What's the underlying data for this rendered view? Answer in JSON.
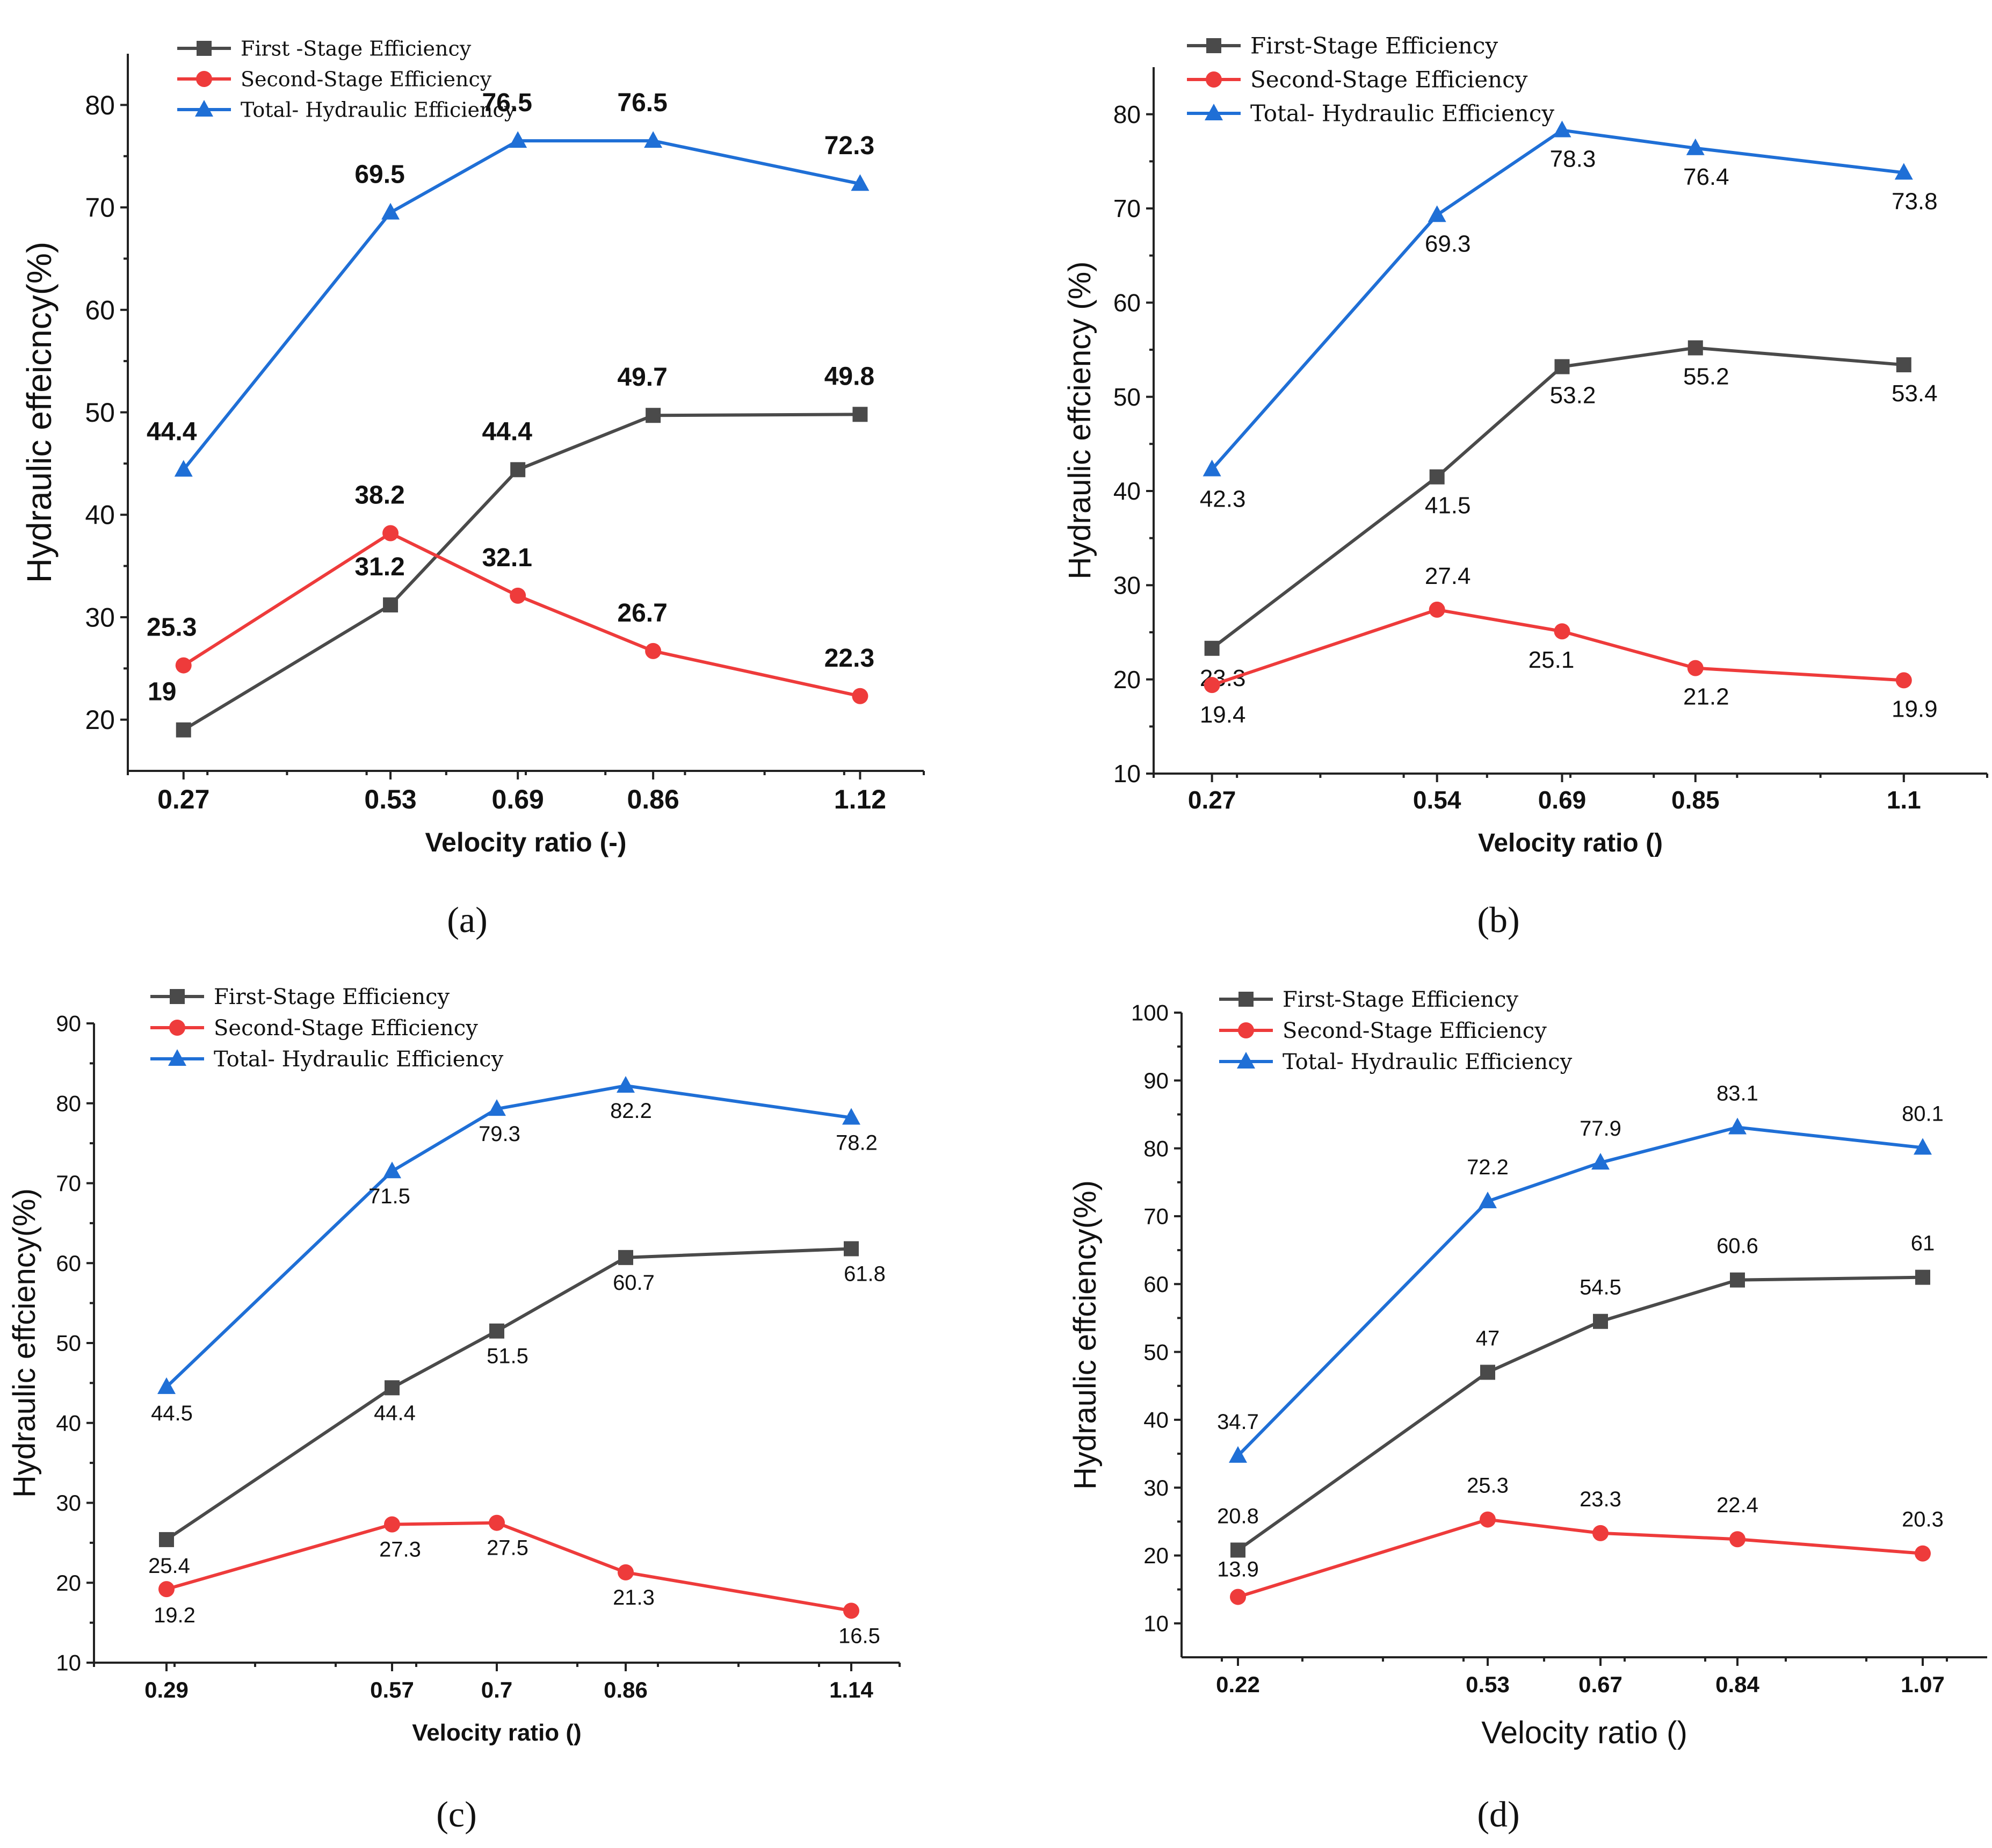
{
  "colors": {
    "first": "#4a4a4a",
    "second": "#ee3b3b",
    "total": "#1f6fd6"
  },
  "chart_data": [
    {
      "id": "a",
      "type": "line",
      "caption": "(a)",
      "xlabel": "Velocity ratio (-)",
      "ylabel": "Hydraulic effeicncy(%)",
      "x": [
        0.27,
        0.53,
        0.69,
        0.86,
        1.12
      ],
      "xticks": [
        "0.27",
        "0.53",
        "0.69",
        "0.86",
        "1.12"
      ],
      "xlim": [
        0.2,
        1.2
      ],
      "ylim": [
        15,
        85
      ],
      "yticks": [
        20,
        30,
        40,
        50,
        60,
        70,
        80
      ],
      "legend": "top-left",
      "series": [
        {
          "key": "first",
          "name": "First -Stage Efficiency",
          "marker": "square",
          "values": [
            19,
            31.2,
            44.4,
            49.7,
            49.8
          ],
          "labels": [
            "19",
            "31.2",
            "44.4",
            "49.7",
            "49.8"
          ]
        },
        {
          "key": "second",
          "name": "Second-Stage Efficiency",
          "marker": "circle",
          "values": [
            25.3,
            38.2,
            32.1,
            26.7,
            22.3
          ],
          "labels": [
            "25.3",
            "38.2",
            "32.1",
            "26.7",
            "22.3"
          ]
        },
        {
          "key": "total",
          "name": "Total- Hydraulic Efficiency",
          "marker": "triangle",
          "values": [
            44.4,
            69.5,
            76.5,
            76.5,
            72.3
          ],
          "labels": [
            "44.4",
            "69.5",
            "76.5",
            "76.5",
            "72.3"
          ]
        }
      ]
    },
    {
      "id": "b",
      "type": "line",
      "caption": "(b)",
      "xlabel": "Velocity ratio ()",
      "ylabel": "Hydraulic effciency (%)",
      "x": [
        0.27,
        0.54,
        0.69,
        0.85,
        1.1
      ],
      "xticks": [
        "0.27",
        "0.54",
        "0.69",
        "0.85",
        "1.1"
      ],
      "xlim": [
        0.2,
        1.2
      ],
      "ylim": [
        10,
        85
      ],
      "yticks": [
        10,
        20,
        30,
        40,
        50,
        60,
        70,
        80
      ],
      "legend": "top-left",
      "series": [
        {
          "key": "first",
          "name": "First-Stage Efficiency",
          "marker": "square",
          "values": [
            23.3,
            41.5,
            53.2,
            55.2,
            53.4
          ],
          "labels": [
            "23.3",
            "41.5",
            "53.2",
            "55.2",
            "53.4"
          ]
        },
        {
          "key": "second",
          "name": "Second-Stage Efficiency",
          "marker": "circle",
          "values": [
            19.4,
            27.4,
            25.1,
            21.2,
            19.9
          ],
          "labels": [
            "19.4",
            "27.4",
            "25.1",
            "21.2",
            "19.9"
          ]
        },
        {
          "key": "total",
          "name": "Total- Hydraulic Efficiency",
          "marker": "triangle",
          "values": [
            42.3,
            69.3,
            78.3,
            76.4,
            73.8
          ],
          "labels": [
            "42.3",
            "69.3",
            "78.3",
            "76.4",
            "73.8"
          ]
        }
      ]
    },
    {
      "id": "c",
      "type": "line",
      "caption": "(c)",
      "xlabel": "Velocity ratio ()",
      "ylabel": "Hydraulic effciency(%)",
      "x": [
        0.29,
        0.57,
        0.7,
        0.86,
        1.14
      ],
      "xticks": [
        "0.29",
        "0.57",
        "0.7",
        "0.86",
        "1.14"
      ],
      "xlim": [
        0.2,
        1.2
      ],
      "ylim": [
        10,
        90
      ],
      "yticks": [
        10,
        20,
        30,
        40,
        50,
        60,
        70,
        80,
        90
      ],
      "legend": "top-left",
      "series": [
        {
          "key": "first",
          "name": "First-Stage Efficiency",
          "marker": "square",
          "values": [
            25.4,
            44.4,
            51.5,
            60.7,
            61.8
          ],
          "labels": [
            "25.4",
            "44.4",
            "51.5",
            "60.7",
            "61.8"
          ]
        },
        {
          "key": "second",
          "name": "Second-Stage Efficiency",
          "marker": "circle",
          "values": [
            19.2,
            27.3,
            27.5,
            21.3,
            16.5
          ],
          "labels": [
            "19.2",
            "27.3",
            "27.5",
            "21.3",
            "16.5"
          ]
        },
        {
          "key": "total",
          "name": "Total- Hydraulic Efficiency",
          "marker": "triangle",
          "values": [
            44.5,
            71.5,
            79.3,
            82.2,
            78.2
          ],
          "labels": [
            "44.5",
            "71.5",
            "79.3",
            "82.2",
            "78.2"
          ]
        }
      ]
    },
    {
      "id": "d",
      "type": "line",
      "caption": "(d)",
      "xlabel": "Velocity ratio ()",
      "ylabel": "Hydraulic effciency(%)",
      "x": [
        0.22,
        0.53,
        0.67,
        0.84,
        1.07
      ],
      "xticks": [
        "0.22",
        "0.53",
        "0.67",
        "0.84",
        "1.07"
      ],
      "xlim": [
        0.15,
        1.15
      ],
      "ylim": [
        5,
        100
      ],
      "yticks": [
        10,
        20,
        30,
        40,
        50,
        60,
        70,
        80,
        90,
        100
      ],
      "legend": "top-left",
      "series": [
        {
          "key": "first",
          "name": "First-Stage Efficiency",
          "marker": "square",
          "values": [
            20.8,
            47,
            54.5,
            60.6,
            61
          ],
          "labels": [
            "20.8",
            "47",
            "54.5",
            "60.6",
            "61"
          ]
        },
        {
          "key": "second",
          "name": "Second-Stage Efficiency",
          "marker": "circle",
          "values": [
            13.9,
            25.3,
            23.3,
            22.4,
            20.3
          ],
          "labels": [
            "13.9",
            "25.3",
            "23.3",
            "22.4",
            "20.3"
          ]
        },
        {
          "key": "total",
          "name": "Total- Hydraulic Efficiency",
          "marker": "triangle",
          "values": [
            34.7,
            72.2,
            77.9,
            83.1,
            80.1
          ],
          "labels": [
            "34.7",
            "72.2",
            "77.9",
            "83.1",
            "80.1"
          ]
        }
      ]
    }
  ]
}
